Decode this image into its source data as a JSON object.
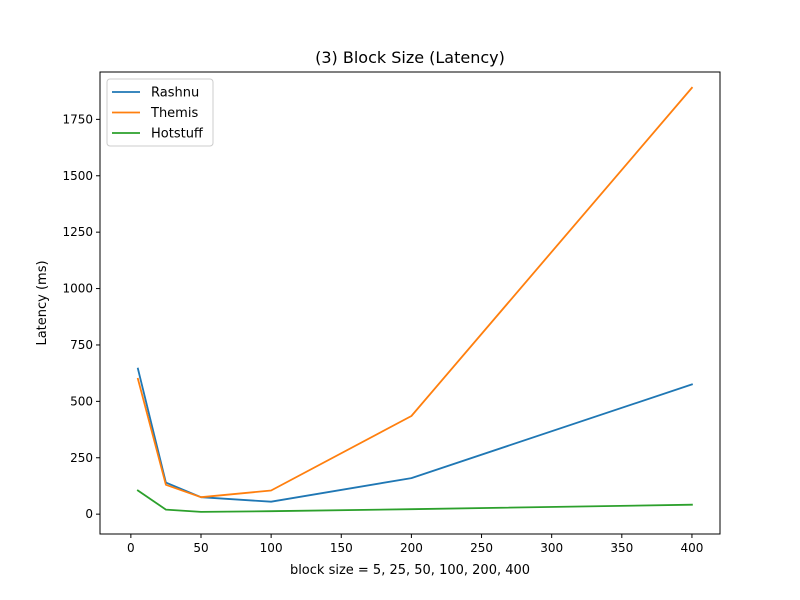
{
  "chart_data": {
    "type": "line",
    "title": "(3) Block Size (Latency)",
    "xlabel": "block size = 5, 25, 50, 100, 200, 400",
    "ylabel": "Latency (ms)",
    "x": [
      5,
      25,
      50,
      100,
      200,
      400
    ],
    "xlim": [
      -22,
      420
    ],
    "ylim": [
      -88,
      1960
    ],
    "xticks": [
      0,
      50,
      100,
      150,
      200,
      250,
      300,
      350,
      400
    ],
    "yticks": [
      0,
      250,
      500,
      750,
      1000,
      1250,
      1500,
      1750
    ],
    "grid": false,
    "legend_position": "upper-left",
    "series": [
      {
        "name": "Rashnu",
        "color": "#1f77b4",
        "values": [
          645,
          140,
          75,
          55,
          160,
          575
        ]
      },
      {
        "name": "Themis",
        "color": "#ff7f0e",
        "values": [
          600,
          130,
          75,
          105,
          435,
          1890
        ]
      },
      {
        "name": "Hotstuff",
        "color": "#2ca02c",
        "values": [
          105,
          20,
          10,
          13,
          22,
          42
        ]
      }
    ]
  }
}
